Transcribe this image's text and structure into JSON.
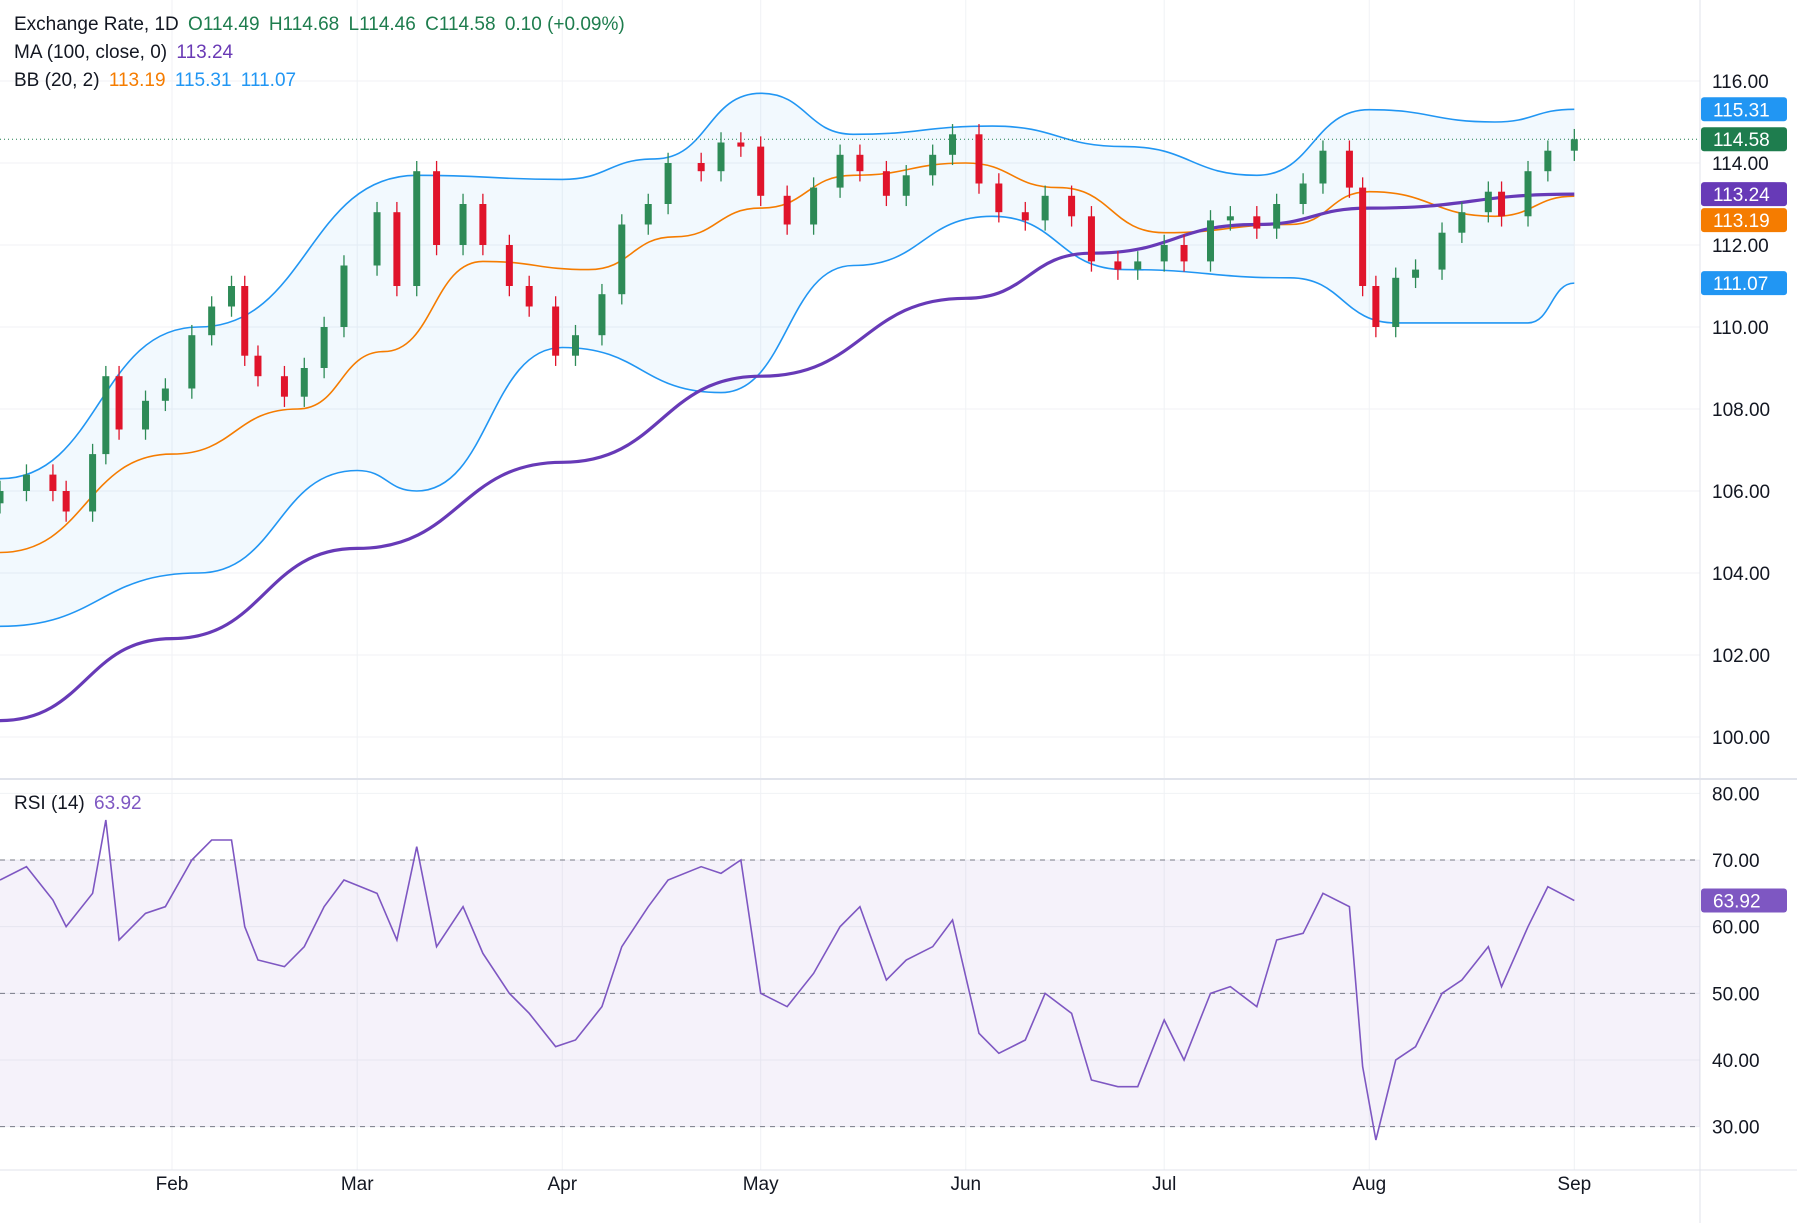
{
  "legend": {
    "symbol": "Exchange Rate, 1D",
    "open": "O114.49",
    "high": "H114.68",
    "low": "L114.46",
    "close": "C114.58",
    "change": "0.10 (+0.09%)",
    "ma_label": "MA (100, close, 0)",
    "ma_value": "113.24",
    "bb_label": "BB (20, 2)",
    "bb_mid": "113.19",
    "bb_upper": "115.31",
    "bb_lower": "111.07",
    "rsi_label": "RSI (14)",
    "rsi_value": "63.92"
  },
  "colors": {
    "up": "#2e8b57",
    "down": "#e0142b",
    "ma": "#673ab7",
    "bb_mid": "#f57c00",
    "bb_band": "#2196f3",
    "rsi": "#7e57c2",
    "last_price": "#1e7d4e"
  },
  "chart_data": [
    {
      "type": "candlestick",
      "title": "Exchange Rate, 1D",
      "y_axis": {
        "min": 99,
        "max": 117,
        "ticks": [
          "116.00",
          "114.00",
          "112.00",
          "110.00",
          "108.00",
          "106.00",
          "104.00",
          "102.00",
          "100.00"
        ]
      },
      "x_axis": {
        "range": [
          "2025-01-06",
          "2025-09-20"
        ],
        "ticks": [
          {
            "date": "2025-02-01",
            "label": "Feb"
          },
          {
            "date": "2025-03-01",
            "label": "Mar"
          },
          {
            "date": "2025-04-01",
            "label": "Apr"
          },
          {
            "date": "2025-05-01",
            "label": "May"
          },
          {
            "date": "2025-06-01",
            "label": "Jun"
          },
          {
            "date": "2025-07-01",
            "label": "Jul"
          },
          {
            "date": "2025-08-01",
            "label": "Aug"
          },
          {
            "date": "2025-09-01",
            "label": "Sep"
          }
        ]
      },
      "candles_close": [
        {
          "date": "2025-01-06",
          "close": 106.0
        },
        {
          "date": "2025-01-10",
          "close": 106.4
        },
        {
          "date": "2025-01-14",
          "close": 106.0
        },
        {
          "date": "2025-01-16",
          "close": 105.5
        },
        {
          "date": "2025-01-20",
          "close": 106.9
        },
        {
          "date": "2025-01-22",
          "close": 108.8
        },
        {
          "date": "2025-01-24",
          "close": 107.5
        },
        {
          "date": "2025-01-28",
          "close": 108.2
        },
        {
          "date": "2025-01-31",
          "close": 108.5
        },
        {
          "date": "2025-02-04",
          "close": 109.8
        },
        {
          "date": "2025-02-07",
          "close": 110.5
        },
        {
          "date": "2025-02-10",
          "close": 111.0
        },
        {
          "date": "2025-02-12",
          "close": 109.3
        },
        {
          "date": "2025-02-14",
          "close": 108.8
        },
        {
          "date": "2025-02-18",
          "close": 108.3
        },
        {
          "date": "2025-02-21",
          "close": 109.0
        },
        {
          "date": "2025-02-24",
          "close": 110.0
        },
        {
          "date": "2025-02-27",
          "close": 111.5
        },
        {
          "date": "2025-03-04",
          "close": 112.8
        },
        {
          "date": "2025-03-07",
          "close": 111.0
        },
        {
          "date": "2025-03-10",
          "close": 113.8
        },
        {
          "date": "2025-03-13",
          "close": 112.0
        },
        {
          "date": "2025-03-17",
          "close": 113.0
        },
        {
          "date": "2025-03-20",
          "close": 112.0
        },
        {
          "date": "2025-03-24",
          "close": 111.0
        },
        {
          "date": "2025-03-27",
          "close": 110.5
        },
        {
          "date": "2025-03-31",
          "close": 109.3
        },
        {
          "date": "2025-04-03",
          "close": 109.8
        },
        {
          "date": "2025-04-07",
          "close": 110.8
        },
        {
          "date": "2025-04-10",
          "close": 112.5
        },
        {
          "date": "2025-04-14",
          "close": 113.0
        },
        {
          "date": "2025-04-17",
          "close": 114.0
        },
        {
          "date": "2025-04-22",
          "close": 113.8
        },
        {
          "date": "2025-04-25",
          "close": 114.5
        },
        {
          "date": "2025-04-28",
          "close": 114.4
        },
        {
          "date": "2025-05-01",
          "close": 113.2
        },
        {
          "date": "2025-05-05",
          "close": 112.5
        },
        {
          "date": "2025-05-09",
          "close": 113.4
        },
        {
          "date": "2025-05-13",
          "close": 114.2
        },
        {
          "date": "2025-05-16",
          "close": 113.8
        },
        {
          "date": "2025-05-20",
          "close": 113.2
        },
        {
          "date": "2025-05-23",
          "close": 113.7
        },
        {
          "date": "2025-05-27",
          "close": 114.2
        },
        {
          "date": "2025-05-30",
          "close": 114.7
        },
        {
          "date": "2025-06-03",
          "close": 113.5
        },
        {
          "date": "2025-06-06",
          "close": 112.8
        },
        {
          "date": "2025-06-10",
          "close": 112.6
        },
        {
          "date": "2025-06-13",
          "close": 113.2
        },
        {
          "date": "2025-06-17",
          "close": 112.7
        },
        {
          "date": "2025-06-20",
          "close": 111.6
        },
        {
          "date": "2025-06-24",
          "close": 111.4
        },
        {
          "date": "2025-06-27",
          "close": 111.6
        },
        {
          "date": "2025-07-01",
          "close": 112.0
        },
        {
          "date": "2025-07-04",
          "close": 111.6
        },
        {
          "date": "2025-07-08",
          "close": 112.6
        },
        {
          "date": "2025-07-11",
          "close": 112.7
        },
        {
          "date": "2025-07-15",
          "close": 112.4
        },
        {
          "date": "2025-07-18",
          "close": 113.0
        },
        {
          "date": "2025-07-22",
          "close": 113.5
        },
        {
          "date": "2025-07-25",
          "close": 114.3
        },
        {
          "date": "2025-07-29",
          "close": 113.4
        },
        {
          "date": "2025-07-31",
          "close": 111.0
        },
        {
          "date": "2025-08-02",
          "close": 110.0
        },
        {
          "date": "2025-08-05",
          "close": 111.2
        },
        {
          "date": "2025-08-08",
          "close": 111.4
        },
        {
          "date": "2025-08-12",
          "close": 112.3
        },
        {
          "date": "2025-08-15",
          "close": 112.8
        },
        {
          "date": "2025-08-19",
          "close": 113.3
        },
        {
          "date": "2025-08-21",
          "close": 112.7
        },
        {
          "date": "2025-08-25",
          "close": 113.8
        },
        {
          "date": "2025-08-28",
          "close": 114.3
        },
        {
          "date": "2025-09-01",
          "close": 114.58
        }
      ],
      "ma_100": [
        {
          "date": "2025-01-06",
          "value": 100.4
        },
        {
          "date": "2025-02-01",
          "value": 102.4
        },
        {
          "date": "2025-03-01",
          "value": 104.6
        },
        {
          "date": "2025-04-01",
          "value": 106.7
        },
        {
          "date": "2025-05-01",
          "value": 108.8
        },
        {
          "date": "2025-06-01",
          "value": 110.7
        },
        {
          "date": "2025-06-20",
          "value": 111.8
        },
        {
          "date": "2025-07-15",
          "value": 112.5
        },
        {
          "date": "2025-08-01",
          "value": 112.9
        },
        {
          "date": "2025-09-01",
          "value": 113.24
        }
      ],
      "bb_middle": [
        {
          "date": "2025-01-06",
          "value": 104.5
        },
        {
          "date": "2025-02-01",
          "value": 106.9
        },
        {
          "date": "2025-02-20",
          "value": 108.0
        },
        {
          "date": "2025-03-05",
          "value": 109.4
        },
        {
          "date": "2025-03-20",
          "value": 111.6
        },
        {
          "date": "2025-04-05",
          "value": 111.4
        },
        {
          "date": "2025-04-18",
          "value": 112.2
        },
        {
          "date": "2025-05-01",
          "value": 112.9
        },
        {
          "date": "2025-05-15",
          "value": 113.7
        },
        {
          "date": "2025-06-01",
          "value": 114.0
        },
        {
          "date": "2025-06-15",
          "value": 113.4
        },
        {
          "date": "2025-07-01",
          "value": 112.3
        },
        {
          "date": "2025-07-20",
          "value": 112.5
        },
        {
          "date": "2025-08-01",
          "value": 113.3
        },
        {
          "date": "2025-08-20",
          "value": 112.7
        },
        {
          "date": "2025-09-01",
          "value": 113.19
        }
      ],
      "bb_upper": [
        {
          "date": "2025-01-06",
          "value": 106.3
        },
        {
          "date": "2025-02-05",
          "value": 110.0
        },
        {
          "date": "2025-03-10",
          "value": 113.7
        },
        {
          "date": "2025-04-01",
          "value": 113.6
        },
        {
          "date": "2025-04-15",
          "value": 114.1
        },
        {
          "date": "2025-05-01",
          "value": 115.7
        },
        {
          "date": "2025-05-15",
          "value": 114.7
        },
        {
          "date": "2025-06-05",
          "value": 114.9
        },
        {
          "date": "2025-06-25",
          "value": 114.4
        },
        {
          "date": "2025-07-15",
          "value": 113.7
        },
        {
          "date": "2025-08-01",
          "value": 115.3
        },
        {
          "date": "2025-08-20",
          "value": 115.0
        },
        {
          "date": "2025-09-01",
          "value": 115.31
        }
      ],
      "bb_lower": [
        {
          "date": "2025-01-06",
          "value": 102.7
        },
        {
          "date": "2025-02-05",
          "value": 104.0
        },
        {
          "date": "2025-03-01",
          "value": 106.5
        },
        {
          "date": "2025-03-10",
          "value": 106.0
        },
        {
          "date": "2025-04-01",
          "value": 109.5
        },
        {
          "date": "2025-04-25",
          "value": 108.4
        },
        {
          "date": "2025-05-15",
          "value": 111.5
        },
        {
          "date": "2025-06-05",
          "value": 112.7
        },
        {
          "date": "2025-06-25",
          "value": 111.4
        },
        {
          "date": "2025-07-20",
          "value": 111.2
        },
        {
          "date": "2025-08-05",
          "value": 110.1
        },
        {
          "date": "2025-08-25",
          "value": 110.1
        },
        {
          "date": "2025-09-01",
          "value": 111.07
        }
      ],
      "price_labels": [
        {
          "value": 115.31,
          "label": "115.31",
          "role": "bb_upper"
        },
        {
          "value": 114.58,
          "label": "114.58",
          "role": "last_price"
        },
        {
          "value": 113.24,
          "label": "113.24",
          "role": "ma"
        },
        {
          "value": 113.19,
          "label": "113.19",
          "role": "bb_mid"
        },
        {
          "value": 111.07,
          "label": "111.07",
          "role": "bb_lower"
        }
      ]
    },
    {
      "type": "line",
      "title": "RSI (14)",
      "y_axis": {
        "min": 25,
        "max": 82,
        "ticks": [
          "80.00",
          "70.00",
          "60.00",
          "50.00",
          "40.00",
          "30.00"
        ]
      },
      "levels": [
        70,
        50,
        30
      ],
      "series": [
        {
          "date": "2025-01-06",
          "value": 67
        },
        {
          "date": "2025-01-10",
          "value": 69
        },
        {
          "date": "2025-01-14",
          "value": 64
        },
        {
          "date": "2025-01-16",
          "value": 60
        },
        {
          "date": "2025-01-20",
          "value": 65
        },
        {
          "date": "2025-01-22",
          "value": 76
        },
        {
          "date": "2025-01-24",
          "value": 58
        },
        {
          "date": "2025-01-28",
          "value": 62
        },
        {
          "date": "2025-01-31",
          "value": 63
        },
        {
          "date": "2025-02-04",
          "value": 70
        },
        {
          "date": "2025-02-07",
          "value": 73
        },
        {
          "date": "2025-02-10",
          "value": 73
        },
        {
          "date": "2025-02-12",
          "value": 60
        },
        {
          "date": "2025-02-14",
          "value": 55
        },
        {
          "date": "2025-02-18",
          "value": 54
        },
        {
          "date": "2025-02-21",
          "value": 57
        },
        {
          "date": "2025-02-24",
          "value": 63
        },
        {
          "date": "2025-02-27",
          "value": 67
        },
        {
          "date": "2025-03-04",
          "value": 65
        },
        {
          "date": "2025-03-07",
          "value": 58
        },
        {
          "date": "2025-03-10",
          "value": 72
        },
        {
          "date": "2025-03-13",
          "value": 57
        },
        {
          "date": "2025-03-17",
          "value": 63
        },
        {
          "date": "2025-03-20",
          "value": 56
        },
        {
          "date": "2025-03-24",
          "value": 50
        },
        {
          "date": "2025-03-27",
          "value": 47
        },
        {
          "date": "2025-03-31",
          "value": 42
        },
        {
          "date": "2025-04-03",
          "value": 43
        },
        {
          "date": "2025-04-07",
          "value": 48
        },
        {
          "date": "2025-04-10",
          "value": 57
        },
        {
          "date": "2025-04-14",
          "value": 63
        },
        {
          "date": "2025-04-17",
          "value": 67
        },
        {
          "date": "2025-04-22",
          "value": 69
        },
        {
          "date": "2025-04-25",
          "value": 68
        },
        {
          "date": "2025-04-28",
          "value": 70
        },
        {
          "date": "2025-05-01",
          "value": 50
        },
        {
          "date": "2025-05-05",
          "value": 48
        },
        {
          "date": "2025-05-09",
          "value": 53
        },
        {
          "date": "2025-05-13",
          "value": 60
        },
        {
          "date": "2025-05-16",
          "value": 63
        },
        {
          "date": "2025-05-20",
          "value": 52
        },
        {
          "date": "2025-05-23",
          "value": 55
        },
        {
          "date": "2025-05-27",
          "value": 57
        },
        {
          "date": "2025-05-30",
          "value": 61
        },
        {
          "date": "2025-06-03",
          "value": 44
        },
        {
          "date": "2025-06-06",
          "value": 41
        },
        {
          "date": "2025-06-10",
          "value": 43
        },
        {
          "date": "2025-06-13",
          "value": 50
        },
        {
          "date": "2025-06-17",
          "value": 47
        },
        {
          "date": "2025-06-20",
          "value": 37
        },
        {
          "date": "2025-06-24",
          "value": 36
        },
        {
          "date": "2025-06-27",
          "value": 36
        },
        {
          "date": "2025-07-01",
          "value": 46
        },
        {
          "date": "2025-07-04",
          "value": 40
        },
        {
          "date": "2025-07-08",
          "value": 50
        },
        {
          "date": "2025-07-11",
          "value": 51
        },
        {
          "date": "2025-07-15",
          "value": 48
        },
        {
          "date": "2025-07-18",
          "value": 58
        },
        {
          "date": "2025-07-22",
          "value": 59
        },
        {
          "date": "2025-07-25",
          "value": 65
        },
        {
          "date": "2025-07-29",
          "value": 63
        },
        {
          "date": "2025-07-31",
          "value": 39
        },
        {
          "date": "2025-08-02",
          "value": 28
        },
        {
          "date": "2025-08-05",
          "value": 40
        },
        {
          "date": "2025-08-08",
          "value": 42
        },
        {
          "date": "2025-08-12",
          "value": 50
        },
        {
          "date": "2025-08-15",
          "value": 52
        },
        {
          "date": "2025-08-19",
          "value": 57
        },
        {
          "date": "2025-08-21",
          "value": 51
        },
        {
          "date": "2025-08-25",
          "value": 60
        },
        {
          "date": "2025-08-28",
          "value": 66
        },
        {
          "date": "2025-09-01",
          "value": 63.92
        }
      ]
    }
  ]
}
